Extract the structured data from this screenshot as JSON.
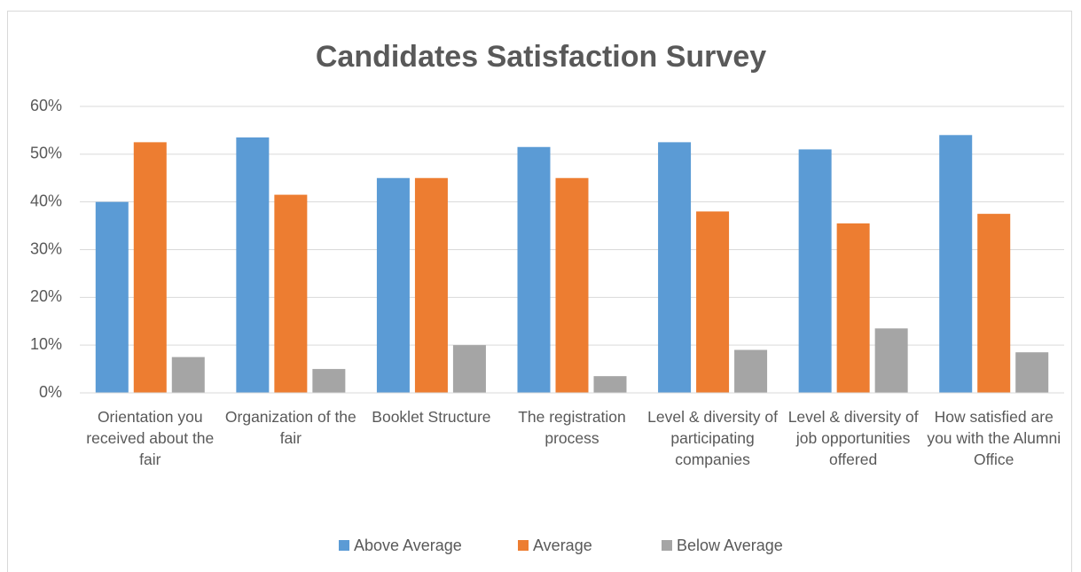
{
  "chart_data": {
    "type": "bar",
    "title": "Candidates Satisfaction Survey",
    "categories": [
      "Orientation you received about the fair",
      "Organization of the fair",
      "Booklet Structure",
      "The registration process",
      "Level & diversity of participating companies",
      "Level & diversity of job opportunities offered",
      "How satisfied are you with the Alumni Office"
    ],
    "series": [
      {
        "name": "Above Average",
        "color": "#5b9bd5",
        "values": [
          40,
          53.5,
          45,
          51.5,
          52.5,
          51,
          54
        ]
      },
      {
        "name": "Average",
        "color": "#ed7d31",
        "values": [
          52.5,
          41.5,
          45,
          45,
          38,
          35.5,
          37.5
        ]
      },
      {
        "name": "Below Average",
        "color": "#a5a5a5",
        "values": [
          7.5,
          5,
          10,
          3.5,
          9,
          13.5,
          8.5
        ]
      }
    ],
    "ylim": [
      0,
      60
    ],
    "yticks": [
      {
        "value": 0,
        "label": "0%"
      },
      {
        "value": 10,
        "label": "10%"
      },
      {
        "value": 20,
        "label": "20%"
      },
      {
        "value": 30,
        "label": "30%"
      },
      {
        "value": 40,
        "label": "40%"
      },
      {
        "value": 50,
        "label": "50%"
      },
      {
        "value": 60,
        "label": "60%"
      }
    ],
    "grid": true,
    "legend": "bottom"
  }
}
